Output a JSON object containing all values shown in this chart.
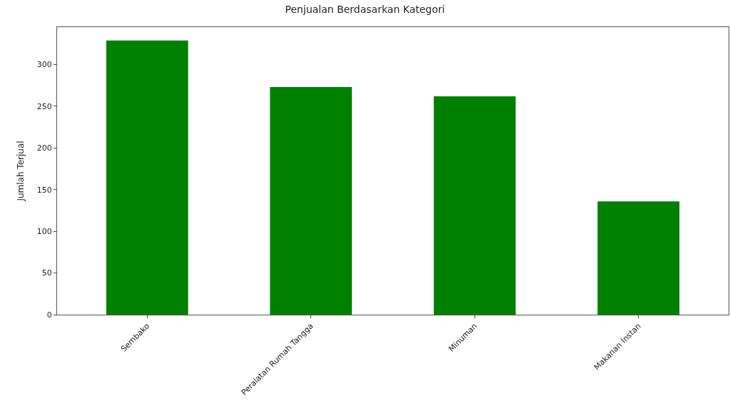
{
  "chart_data": {
    "type": "bar",
    "title": "Penjualan Berdasarkan Kategori",
    "ylabel": "Jumlah Terjual",
    "categories": [
      "Sembako",
      "Peralatan Rumah Tangga",
      "Minuman",
      "Makanan Instan"
    ],
    "values": [
      329,
      273,
      262,
      136
    ],
    "color": "#008000",
    "ylim": [
      0,
      345
    ],
    "yticks": [
      0,
      50,
      100,
      150,
      200,
      250,
      300
    ]
  }
}
